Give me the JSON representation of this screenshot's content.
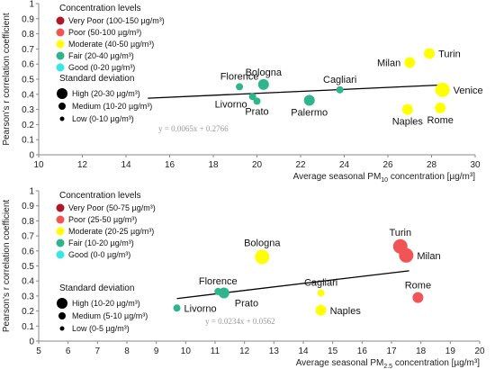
{
  "palette": {
    "very_poor": "#b0162a",
    "poor": "#f05454",
    "moderate": "#ffff00",
    "fair": "#2fb58d",
    "good": "#39e6e6",
    "axis": "#888888",
    "trend": "#000000"
  },
  "chart_data": [
    {
      "type": "scatter",
      "ylabel": "Pearson's r correlation coefficient",
      "xlabel": "Average seasonal PM10 concentration [µg/m³]",
      "xlim": [
        10,
        30
      ],
      "ylim": [
        0,
        1
      ],
      "x_ticks": [
        "10",
        "12",
        "14",
        "16",
        "18",
        "20",
        "22",
        "24",
        "26",
        "28",
        "30"
      ],
      "y_ticks": [
        "0",
        "0.1",
        "0.2",
        "0.3",
        "0.4",
        "0.5",
        "0.6",
        "0.7",
        "0.8",
        "0.9",
        "1"
      ],
      "grid": false,
      "legend_position": "top-left",
      "legend": {
        "conc_title": "Concentration levels",
        "conc_items": [
          {
            "label": "Very Poor (100-150 µg/m³)",
            "level": "very_poor"
          },
          {
            "label": "Poor (50-100 µg/m³)",
            "level": "poor"
          },
          {
            "label": "Moderate (40-50 µg/m³)",
            "level": "moderate"
          },
          {
            "label": "Fair (20-40 µg/m³)",
            "level": "fair"
          },
          {
            "label": "Good (0-20 µg/m³)",
            "level": "good"
          }
        ],
        "sd_title": "Standard deviation",
        "sd_items": [
          {
            "label": "High (20-30 µg/m³)",
            "size": "large"
          },
          {
            "label": "Medium (10-20 µg/m³)",
            "size": "medium"
          },
          {
            "label": "Low (0-10 µg/m³)",
            "size": "small"
          }
        ]
      },
      "points": [
        {
          "name": "Florence",
          "x": 19.2,
          "y": 0.45,
          "level": "fair",
          "size": "small",
          "label_anchor": "above"
        },
        {
          "name": "Bologna",
          "x": 20.3,
          "y": 0.465,
          "level": "fair",
          "size": "medium",
          "label_anchor": "above"
        },
        {
          "name": "Livorno",
          "x": 19.8,
          "y": 0.385,
          "level": "fair",
          "size": "small",
          "label_anchor": "left-below"
        },
        {
          "name": "Prato",
          "x": 20.0,
          "y": 0.355,
          "level": "fair",
          "size": "small",
          "label_anchor": "below"
        },
        {
          "name": "Palermo",
          "x": 22.4,
          "y": 0.36,
          "level": "fair",
          "size": "medium",
          "label_anchor": "below"
        },
        {
          "name": "Cagliari",
          "x": 23.8,
          "y": 0.43,
          "level": "fair",
          "size": "small",
          "label_anchor": "above"
        },
        {
          "name": "Milan",
          "x": 27.0,
          "y": 0.61,
          "level": "moderate",
          "size": "medium",
          "label_anchor": "left"
        },
        {
          "name": "Turin",
          "x": 27.9,
          "y": 0.67,
          "level": "moderate",
          "size": "medium",
          "label_anchor": "right"
        },
        {
          "name": "Venice",
          "x": 28.5,
          "y": 0.43,
          "level": "moderate",
          "size": "large",
          "label_anchor": "right"
        },
        {
          "name": "Naples",
          "x": 26.9,
          "y": 0.3,
          "level": "moderate",
          "size": "medium",
          "label_anchor": "below"
        },
        {
          "name": "Rome",
          "x": 28.4,
          "y": 0.31,
          "level": "moderate",
          "size": "medium",
          "label_anchor": "below"
        }
      ],
      "trendline": {
        "slope": 0.0065,
        "intercept": 0.2766,
        "x_range": [
          15,
          28.5
        ],
        "equation": "y = 0.0065x + 0.2766"
      }
    },
    {
      "type": "scatter",
      "ylabel": "Pearson's r correlation coefficient",
      "xlabel": "Average seasonal PM2.5 concentration [µg/m³]",
      "xlim": [
        5,
        20
      ],
      "ylim": [
        0,
        1
      ],
      "x_ticks": [
        "5",
        "6",
        "7",
        "8",
        "9",
        "10",
        "11",
        "12",
        "13",
        "14",
        "15",
        "16",
        "17",
        "18",
        "19",
        "20"
      ],
      "y_ticks": [
        "0",
        "0.1",
        "0.2",
        "0.3",
        "0.4",
        "0.5",
        "0.6",
        "0.7",
        "0.8",
        "0.9",
        "1"
      ],
      "grid": false,
      "legend_position": "top-left",
      "legend": {
        "conc_title": "Concentration levels",
        "conc_items": [
          {
            "label": "Very Poor (50-75 µg/m³)",
            "level": "very_poor"
          },
          {
            "label": "Poor (25-50 µg/m³)",
            "level": "poor"
          },
          {
            "label": "Moderate (20-25 µg/m³)",
            "level": "moderate"
          },
          {
            "label": "Fair (10-20 µg/m³)",
            "level": "fair"
          },
          {
            "label": "Good (0-0 µg/m³)",
            "level": "good"
          }
        ],
        "sd_title": "Standard deviation",
        "sd_items": [
          {
            "label": "High (10-20 µg/m³)",
            "size": "large"
          },
          {
            "label": "Medium (5-10 µg/m³)",
            "size": "medium"
          },
          {
            "label": "Low (0-5 µg/m³)",
            "size": "small"
          }
        ]
      },
      "points": [
        {
          "name": "Bologna",
          "x": 12.6,
          "y": 0.56,
          "level": "moderate",
          "size": "large",
          "label_anchor": "above"
        },
        {
          "name": "Florence",
          "x": 11.1,
          "y": 0.33,
          "level": "fair",
          "size": "small",
          "label_anchor": "above"
        },
        {
          "name": "Prato",
          "x": 11.3,
          "y": 0.32,
          "level": "fair",
          "size": "medium",
          "label_anchor": "right-below"
        },
        {
          "name": "Livorno",
          "x": 9.7,
          "y": 0.22,
          "level": "fair",
          "size": "small",
          "label_anchor": "right"
        },
        {
          "name": "Cagliari",
          "x": 14.6,
          "y": 0.32,
          "level": "moderate",
          "size": "small",
          "label_anchor": "above"
        },
        {
          "name": "Naples",
          "x": 14.6,
          "y": 0.205,
          "level": "moderate",
          "size": "medium",
          "label_anchor": "right"
        },
        {
          "name": "Turin",
          "x": 17.3,
          "y": 0.63,
          "level": "poor",
          "size": "large",
          "label_anchor": "above"
        },
        {
          "name": "Milan",
          "x": 17.5,
          "y": 0.57,
          "level": "poor",
          "size": "large",
          "label_anchor": "right"
        },
        {
          "name": "Rome",
          "x": 17.9,
          "y": 0.29,
          "level": "poor",
          "size": "medium",
          "label_anchor": "above"
        }
      ],
      "trendline": {
        "slope": 0.0234,
        "intercept": 0.0562,
        "x_range": [
          9.7,
          17.6
        ],
        "equation": "y = 0.0234x + 0.0562"
      }
    }
  ]
}
